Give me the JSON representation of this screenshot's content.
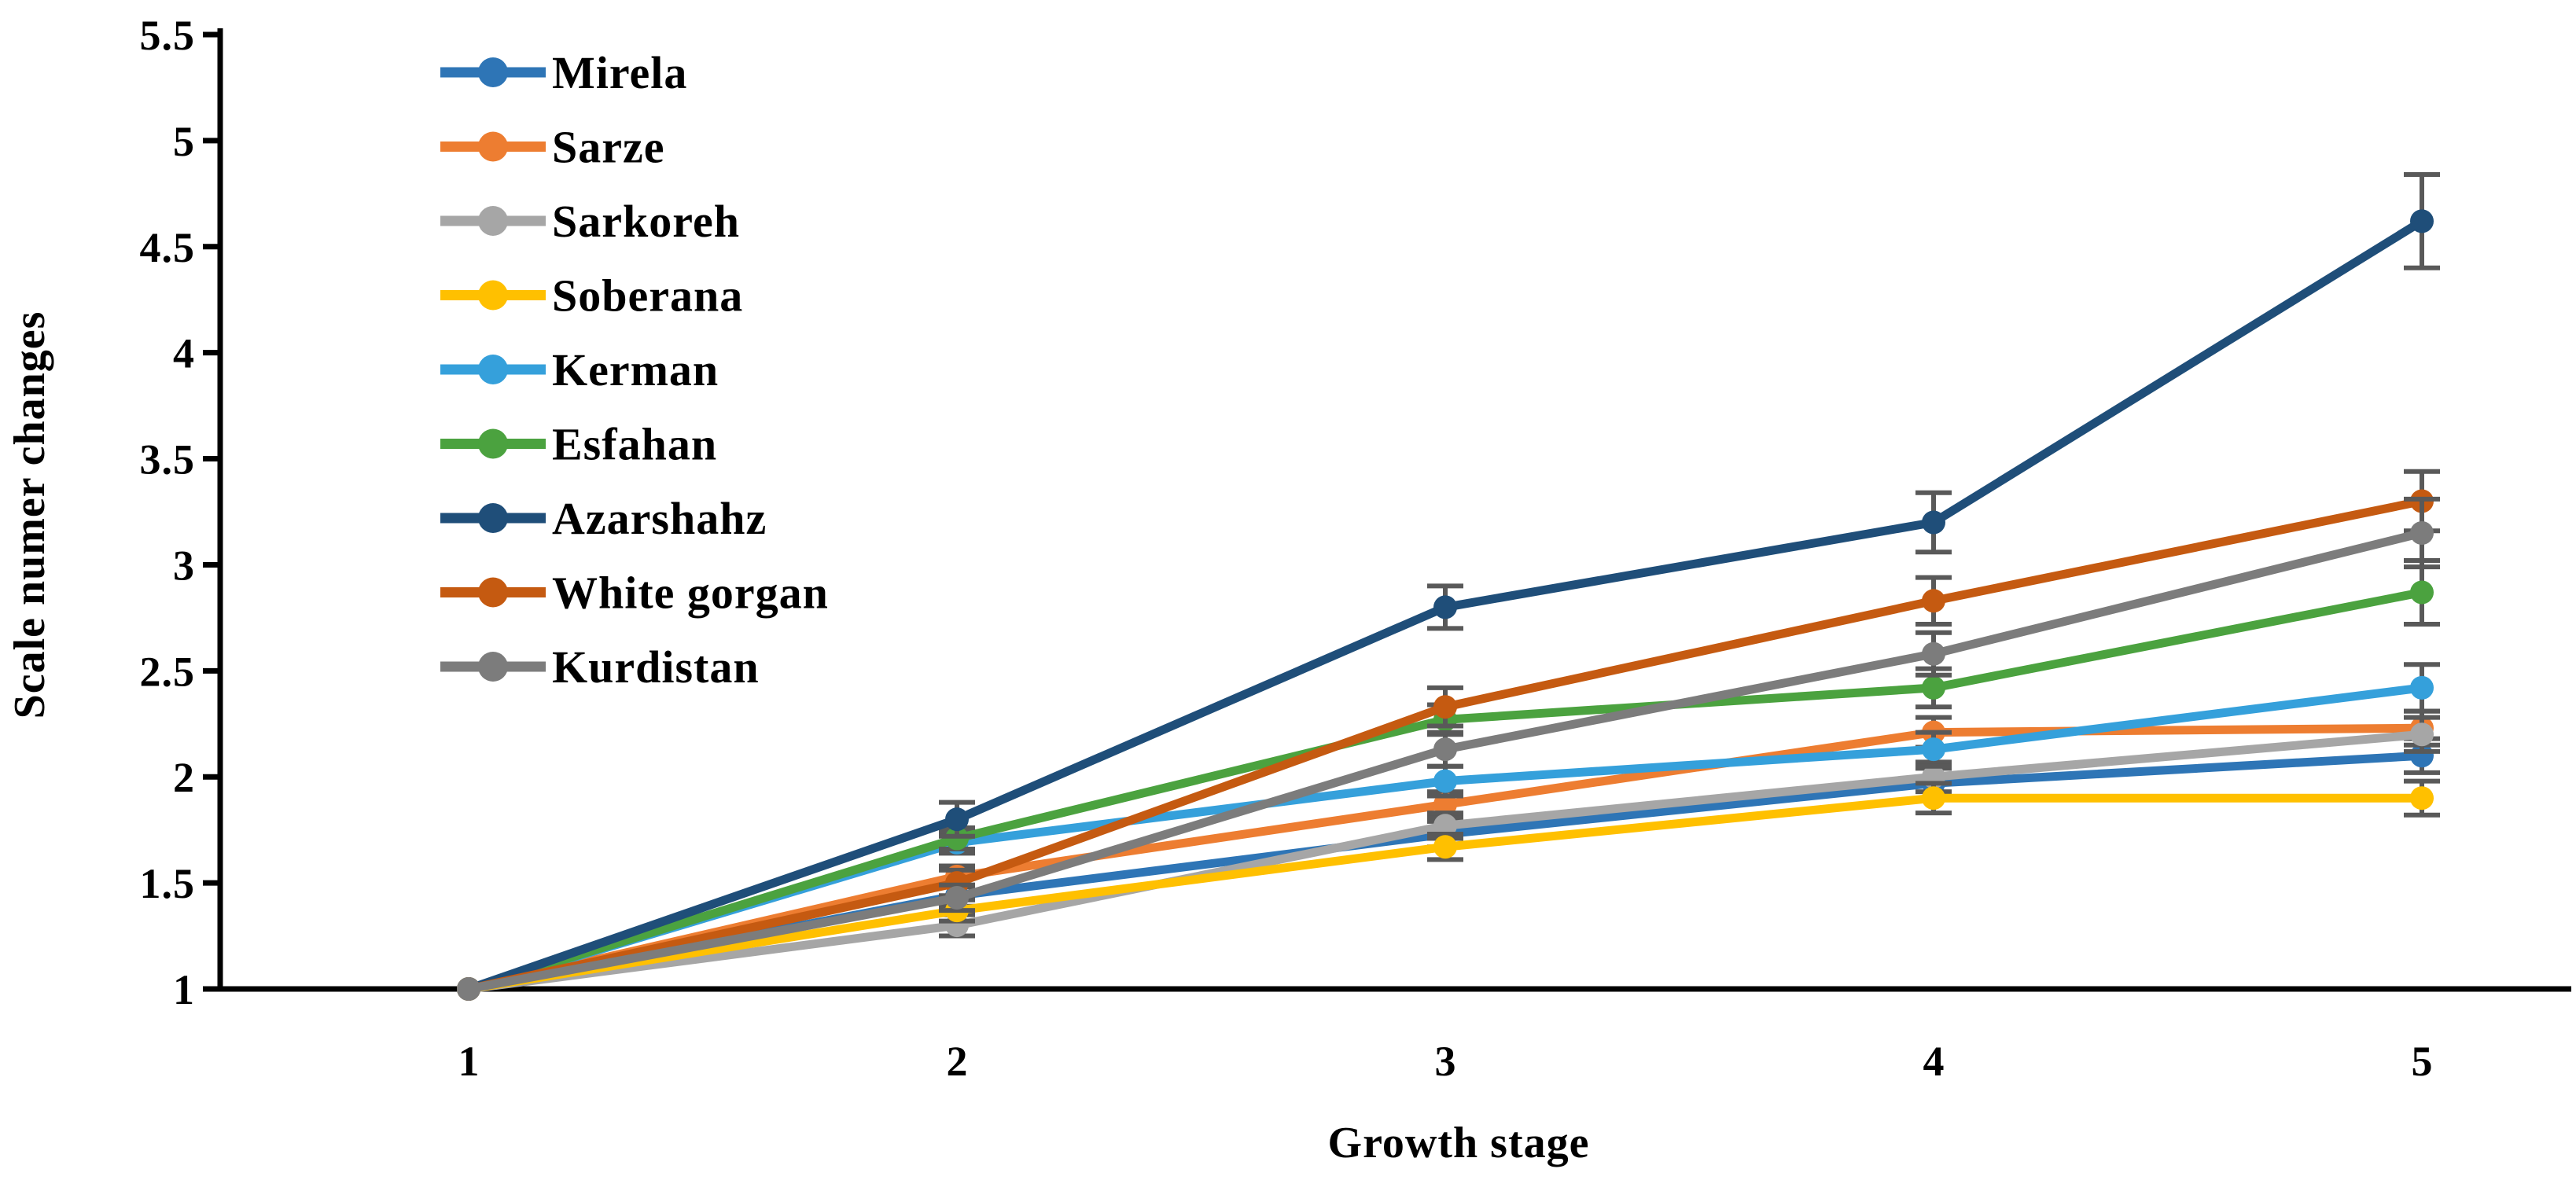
{
  "chart_data": {
    "type": "line",
    "title": "",
    "xlabel": "Growth stage",
    "ylabel": "Scale numer changes",
    "categories": [
      "1",
      "2",
      "3",
      "4",
      "5"
    ],
    "x_values": [
      1,
      2,
      3,
      4,
      5
    ],
    "ylim": [
      1,
      5.5
    ],
    "y_tick_step": 0.5,
    "y_ticks": [
      "1",
      "1.5",
      "2",
      "2.5",
      "3",
      "3.5",
      "4",
      "4.5",
      "5",
      "5.5"
    ],
    "grid": "off",
    "legend_position": "upper-left-inside",
    "marker": "circle",
    "error_bars": "vertical-symmetric",
    "colors": {
      "axis": "#000000",
      "error_bar": "#595959",
      "background": "#ffffff"
    },
    "series": [
      {
        "name": "Mirela",
        "color": "#2E75B6",
        "values": [
          1,
          1.44,
          1.73,
          1.97,
          2.1
        ],
        "err": [
          0,
          0.05,
          0.06,
          0.07,
          0.08
        ]
      },
      {
        "name": "Sarze",
        "color": "#ED7D31",
        "values": [
          1,
          1.53,
          1.87,
          2.21,
          2.23
        ],
        "err": [
          0,
          0.05,
          0.06,
          0.07,
          0.08
        ]
      },
      {
        "name": "Sarkoreh",
        "color": "#A6A6A6",
        "values": [
          1,
          1.3,
          1.77,
          2.0,
          2.2
        ],
        "err": [
          0,
          0.05,
          0.06,
          0.07,
          0.08
        ]
      },
      {
        "name": "Soberana",
        "color": "#FFC000",
        "values": [
          1,
          1.37,
          1.67,
          1.9,
          1.9
        ],
        "err": [
          0,
          0.05,
          0.06,
          0.07,
          0.08
        ]
      },
      {
        "name": "Kerman",
        "color": "#35A0DB",
        "values": [
          1,
          1.69,
          1.98,
          2.13,
          2.42
        ],
        "err": [
          0,
          0.05,
          0.07,
          0.08,
          0.11
        ]
      },
      {
        "name": "Esfahan",
        "color": "#4BA23F",
        "values": [
          1,
          1.71,
          2.27,
          2.42,
          2.87
        ],
        "err": [
          0,
          0.05,
          0.07,
          0.09,
          0.15
        ]
      },
      {
        "name": "Azarshahz",
        "color": "#1F4E79",
        "values": [
          1,
          1.8,
          2.8,
          3.2,
          4.62
        ],
        "err": [
          0,
          0.08,
          0.1,
          0.14,
          0.22
        ]
      },
      {
        "name": "White gorgan",
        "color": "#C55A11",
        "values": [
          1,
          1.5,
          2.33,
          2.83,
          3.3
        ],
        "err": [
          0,
          0.06,
          0.09,
          0.11,
          0.14
        ]
      },
      {
        "name": "Kurdistan",
        "color": "#7C7C7C",
        "values": [
          1,
          1.43,
          2.13,
          2.58,
          3.15
        ],
        "err": [
          0,
          0.06,
          0.08,
          0.1,
          0.16
        ]
      }
    ]
  }
}
